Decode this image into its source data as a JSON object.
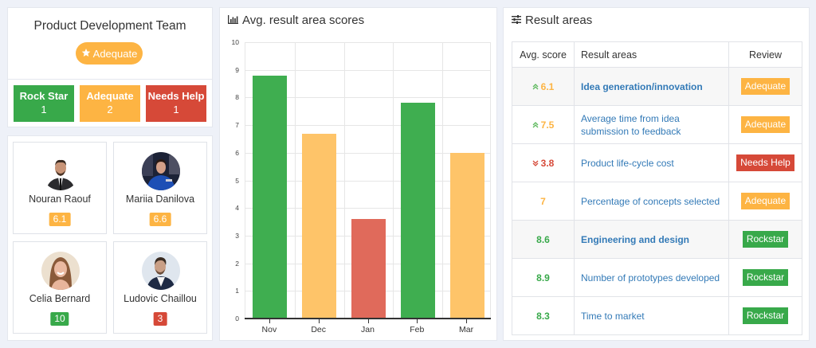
{
  "team": {
    "title": "Product Development Team",
    "badge_label": "Adequate",
    "badge_icon": "star-icon",
    "stats": [
      {
        "label": "Rock Star",
        "count": "1",
        "color": "#38a94a"
      },
      {
        "label": "Adequate",
        "count": "2",
        "color": "#fdb443"
      },
      {
        "label": "Needs Help",
        "count": "1",
        "color": "#d64938"
      }
    ]
  },
  "people": [
    {
      "name": "Nouran Raouf",
      "score": "6.1",
      "score_color": "#fdb443"
    },
    {
      "name": "Mariia Danilova",
      "score": "6.6",
      "score_color": "#fdb443"
    },
    {
      "name": "Celia Bernard",
      "score": "10",
      "score_color": "#38a94a"
    },
    {
      "name": "Ludovic Chaillou",
      "score": "3",
      "score_color": "#d64938"
    }
  ],
  "chart_panel": {
    "title": "Avg. result area scores",
    "icon": "bar-chart-icon"
  },
  "chart_data": {
    "type": "bar",
    "title": "Avg. result area scores",
    "categories": [
      "Nov",
      "Dec",
      "Jan",
      "Feb",
      "Mar"
    ],
    "values": [
      8.8,
      6.7,
      3.6,
      7.8,
      6.0
    ],
    "bar_colors": [
      "#3fae50",
      "#fec469",
      "#e06a5b",
      "#3fae50",
      "#fec469"
    ],
    "xlabel": "",
    "ylabel": "",
    "ylim": [
      0,
      10
    ],
    "yticks": [
      "0",
      "1",
      "2",
      "3",
      "4",
      "5",
      "6",
      "7",
      "8",
      "9",
      "10"
    ],
    "grid": true,
    "legend": null
  },
  "results_panel": {
    "title": "Result areas",
    "icon": "sliders-icon",
    "columns": [
      "Avg. score",
      "Result areas",
      "Review"
    ],
    "rows": [
      {
        "score": "6.1",
        "trend": "up",
        "score_color": "#fdb443",
        "area": "Idea generation/innovation",
        "bold": true,
        "review": "Adequate",
        "review_color": "#fdb443"
      },
      {
        "score": "7.5",
        "trend": "up",
        "score_color": "#fdb443",
        "area": "Average time from idea submission to feedback",
        "bold": false,
        "review": "Adequate",
        "review_color": "#fdb443"
      },
      {
        "score": "3.8",
        "trend": "down",
        "score_color": "#d64938",
        "area": "Product life-cycle cost",
        "bold": false,
        "review": "Needs Help",
        "review_color": "#d64938"
      },
      {
        "score": "7",
        "trend": "",
        "score_color": "#fdb443",
        "area": "Percentage of concepts selected",
        "bold": false,
        "review": "Adequate",
        "review_color": "#fdb443"
      },
      {
        "score": "8.6",
        "trend": "",
        "score_color": "#38a94a",
        "area": "Engineering and design",
        "bold": true,
        "review": "Rockstar",
        "review_color": "#38a94a"
      },
      {
        "score": "8.9",
        "trend": "",
        "score_color": "#38a94a",
        "area": "Number of prototypes developed",
        "bold": false,
        "review": "Rockstar",
        "review_color": "#38a94a"
      },
      {
        "score": "8.3",
        "trend": "",
        "score_color": "#38a94a",
        "area": "Time to market",
        "bold": false,
        "review": "Rockstar",
        "review_color": "#38a94a"
      }
    ]
  }
}
